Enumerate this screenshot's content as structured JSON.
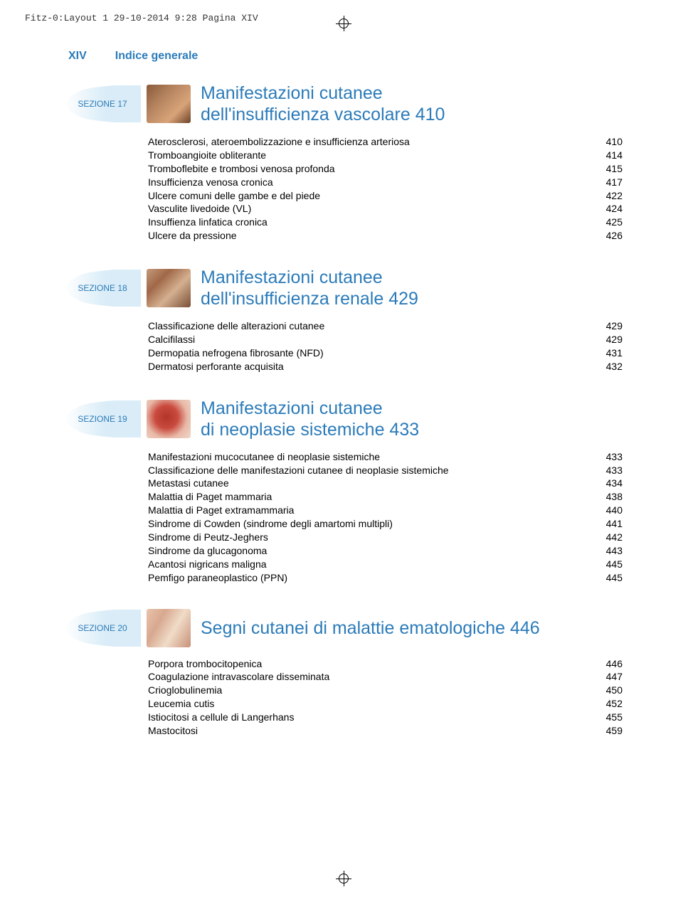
{
  "meta": {
    "header_text": "Fitz-0:Layout 1  29-10-2014  9:28  Pagina XIV"
  },
  "page": {
    "number": "XIV",
    "title": "Indice generale"
  },
  "colors": {
    "accent": "#2b7bb9",
    "text": "#000000",
    "tab_fill": "#d9ecf7",
    "tab_fade": "#ffffff"
  },
  "sections": [
    {
      "label": "SEZIONE 17",
      "thumb_bg": "linear-gradient(135deg,#8a5a3a 0%,#b98863 40%,#d8a378 70%,#6b4228 100%)",
      "title_lines": [
        "Manifestazioni cutanee",
        "dell'insufficienza vascolare  410"
      ],
      "items": [
        {
          "label": "Aterosclerosi, ateroembolizzazione e insufficienza arteriosa",
          "page": "410"
        },
        {
          "label": "Tromboangioite obliterante",
          "page": "414"
        },
        {
          "label": "Tromboflebite e trombosi venosa profonda",
          "page": "415"
        },
        {
          "label": "Insufficienza venosa cronica",
          "page": "417"
        },
        {
          "label": "Ulcere comuni delle gambe e del piede",
          "page": "422"
        },
        {
          "label": "Vasculite livedoide (VL)",
          "page": "424"
        },
        {
          "label": "Insuffienza linfatica cronica",
          "page": "425"
        },
        {
          "label": "Ulcere da pressione",
          "page": "426"
        }
      ]
    },
    {
      "label": "SEZIONE 18",
      "thumb_bg": "linear-gradient(135deg,#c49a7a 0%,#a06848 30%,#d4b090 60%,#7a4e36 100%)",
      "title_lines": [
        "Manifestazioni cutanee",
        "dell'insufficienza renale  429"
      ],
      "items": [
        {
          "label": "Classificazione delle alterazioni cutanee",
          "page": "429"
        },
        {
          "label": "Calcifilassi",
          "page": "429"
        },
        {
          "label": "Dermopatia nefrogena fibrosante (NFD)",
          "page": "431"
        },
        {
          "label": "Dermatosi perforante acquisita",
          "page": "432"
        }
      ]
    },
    {
      "label": "SEZIONE 19",
      "thumb_bg": "radial-gradient(circle at 45% 45%, #b0352a 0%, #c94a3e 35%, #e8b9a8 65%, #f0d8ca 100%)",
      "title_lines": [
        "Manifestazioni cutanee",
        "di neoplasie sistemiche  433"
      ],
      "items": [
        {
          "label": "Manifestazioni mucocutanee di neoplasie sistemiche",
          "page": "433"
        },
        {
          "label": "Classificazione delle manifestazioni cutanee di neoplasie sistemiche",
          "page": "433"
        },
        {
          "label": "Metastasi cutanee",
          "page": "434"
        },
        {
          "label": "Malattia di Paget mammaria",
          "page": "438"
        },
        {
          "label": "Malattia di Paget extramammaria",
          "page": "440"
        },
        {
          "label": "Sindrome di Cowden (sindrome degli amartomi multipli)",
          "page": "441"
        },
        {
          "label": "Sindrome di Peutz-Jeghers",
          "page": "442"
        },
        {
          "label": "Sindrome da glucagonoma",
          "page": "443"
        },
        {
          "label": "Acantosi nigricans maligna",
          "page": "445"
        },
        {
          "label": "Pemfigo paraneoplastico (PPN)",
          "page": "445"
        }
      ]
    },
    {
      "label": "SEZIONE 20",
      "thumb_bg": "linear-gradient(120deg,#e8c4a8 0%,#d8a890 30%,#f0dcc8 60%,#c89078 100%)",
      "title_lines": [
        "Segni cutanei di malattie ematologiche  446"
      ],
      "items": [
        {
          "label": "Porpora trombocitopenica",
          "page": "446"
        },
        {
          "label": "Coagulazione intravascolare disseminata",
          "page": "447"
        },
        {
          "label": "Crioglobulinemia",
          "page": "450"
        },
        {
          "label": "Leucemia cutis",
          "page": "452"
        },
        {
          "label": "Istiocitosi a cellule di Langerhans",
          "page": "455"
        },
        {
          "label": "Mastocitosi",
          "page": "459"
        }
      ]
    }
  ]
}
